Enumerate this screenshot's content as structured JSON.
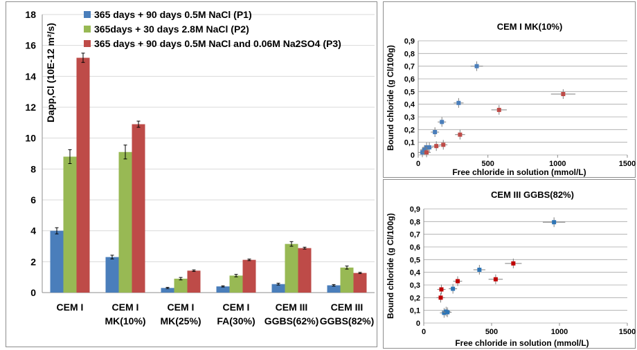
{
  "chart_data": [
    {
      "type": "bar",
      "title": "",
      "ylabel": "Dapp,Cl (10E-12 m²/s)",
      "ylim": [
        0,
        18
      ],
      "yticks": [
        0,
        2,
        4,
        6,
        8,
        10,
        12,
        14,
        16,
        18
      ],
      "categories": [
        [
          "CEM I"
        ],
        [
          "CEM I",
          "MK(10%)"
        ],
        [
          "CEM I",
          "MK(25%)"
        ],
        [
          "CEM I",
          "FA(30%)"
        ],
        [
          "CEM III",
          "GGBS(62%)"
        ],
        [
          "CEM III",
          "GGBS(82%)"
        ]
      ],
      "legend_position": "top-right",
      "series": [
        {
          "name": "365 days + 90 days 0.5M NaCl (P1)",
          "color": "#4a7ebb",
          "values": [
            4.0,
            2.3,
            0.3,
            0.4,
            0.55,
            0.47
          ],
          "errors": [
            0.2,
            0.12,
            0.04,
            0.04,
            0.06,
            0.05
          ]
        },
        {
          "name": "365days + 30 days 2.8M NaCl (P2)",
          "color": "#98b954",
          "values": [
            8.8,
            9.1,
            0.9,
            1.1,
            3.15,
            1.62
          ],
          "errors": [
            0.45,
            0.45,
            0.08,
            0.08,
            0.15,
            0.1
          ]
        },
        {
          "name": "365 days + 90 days 0.5M NaCl and 0.06M Na2SO4 (P3)",
          "color": "#be4b48",
          "values": [
            15.2,
            10.9,
            1.42,
            2.12,
            2.88,
            1.27
          ],
          "errors": [
            0.3,
            0.2,
            0.05,
            0.05,
            0.06,
            0.04
          ]
        }
      ]
    },
    {
      "type": "scatter",
      "title": "CEM I MK(10%)",
      "xlabel": "Free chloride in solution (mmol/L)",
      "ylabel": "Bound chloride (g Cl/100g)",
      "xlim": [
        0,
        1500
      ],
      "ylim": [
        0,
        0.9
      ],
      "xticks": [
        "0",
        "500",
        "1000",
        "1500"
      ],
      "yticks": [
        "0",
        "0,1",
        "0,2",
        "0,3",
        "0,4",
        "0,5",
        "0,6",
        "0,7",
        "0,8",
        "0,9"
      ],
      "series": [
        {
          "color": "#4a7ebb",
          "points": [
            [
              30,
              0.02
            ],
            [
              45,
              0.04
            ],
            [
              60,
              0.06
            ],
            [
              80,
              0.06
            ],
            [
              120,
              0.18
            ],
            [
              170,
              0.26
            ],
            [
              290,
              0.41
            ],
            [
              420,
              0.7
            ]
          ]
        },
        {
          "color": "#be4b48",
          "points": [
            [
              60,
              0.02
            ],
            [
              130,
              0.07
            ],
            [
              180,
              0.08
            ],
            [
              300,
              0.16
            ],
            [
              580,
              0.355
            ],
            [
              1040,
              0.48
            ]
          ]
        }
      ]
    },
    {
      "type": "scatter",
      "title": "CEM III GGBS(82%)",
      "xlabel": "Free chloride in solution (mmol/L)",
      "ylabel": "Bound chloride (g Cl/100g)",
      "xlim": [
        0,
        1500
      ],
      "ylim": [
        0,
        0.9
      ],
      "xticks": [
        "0",
        "500",
        "1000",
        "1500"
      ],
      "yticks": [
        "0",
        "0,1",
        "0,2",
        "0,3",
        "0,4",
        "0,5",
        "0,6",
        "0,7",
        "0,8",
        "0,9"
      ],
      "series": [
        {
          "color": "#2e75b6",
          "points": [
            [
              150,
              0.08
            ],
            [
              165,
              0.09
            ],
            [
              175,
              0.085
            ],
            [
              215,
              0.27
            ],
            [
              410,
              0.42
            ],
            [
              960,
              0.795
            ]
          ]
        },
        {
          "color": "#c00000",
          "points": [
            [
              125,
              0.2
            ],
            [
              130,
              0.265
            ],
            [
              250,
              0.33
            ],
            [
              530,
              0.345
            ],
            [
              660,
              0.47
            ]
          ]
        }
      ]
    }
  ]
}
